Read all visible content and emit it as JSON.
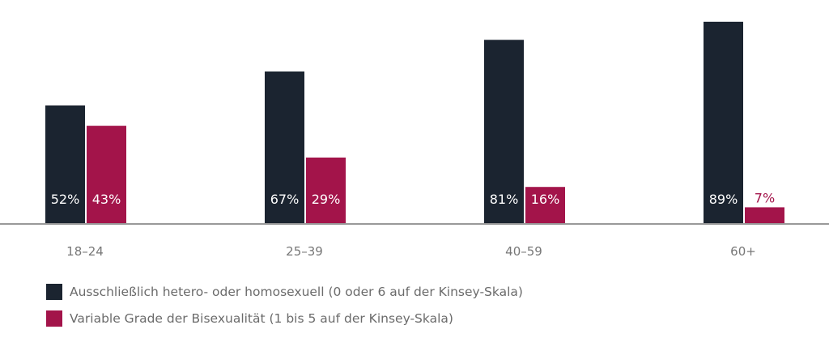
{
  "chart_data": {
    "type": "bar",
    "categories": [
      "18–24",
      "25–39",
      "40–59",
      "60+"
    ],
    "series": [
      {
        "name": "Ausschließlich hetero- oder homosexuell (0 oder 6 auf der Kinsey-Skala)",
        "color": "#1b2430",
        "values": [
          52,
          67,
          81,
          89
        ]
      },
      {
        "name": "Variable Grade der Bisexualität (1 bis 5 auf der Kinsey-Skala)",
        "color": "#a3144a",
        "values": [
          43,
          29,
          16,
          7
        ]
      }
    ],
    "title": "",
    "xlabel": "",
    "ylabel": "",
    "ylim": [
      0,
      98.6
    ],
    "value_suffix": "%",
    "grid": false,
    "legend": "bottom-left"
  }
}
